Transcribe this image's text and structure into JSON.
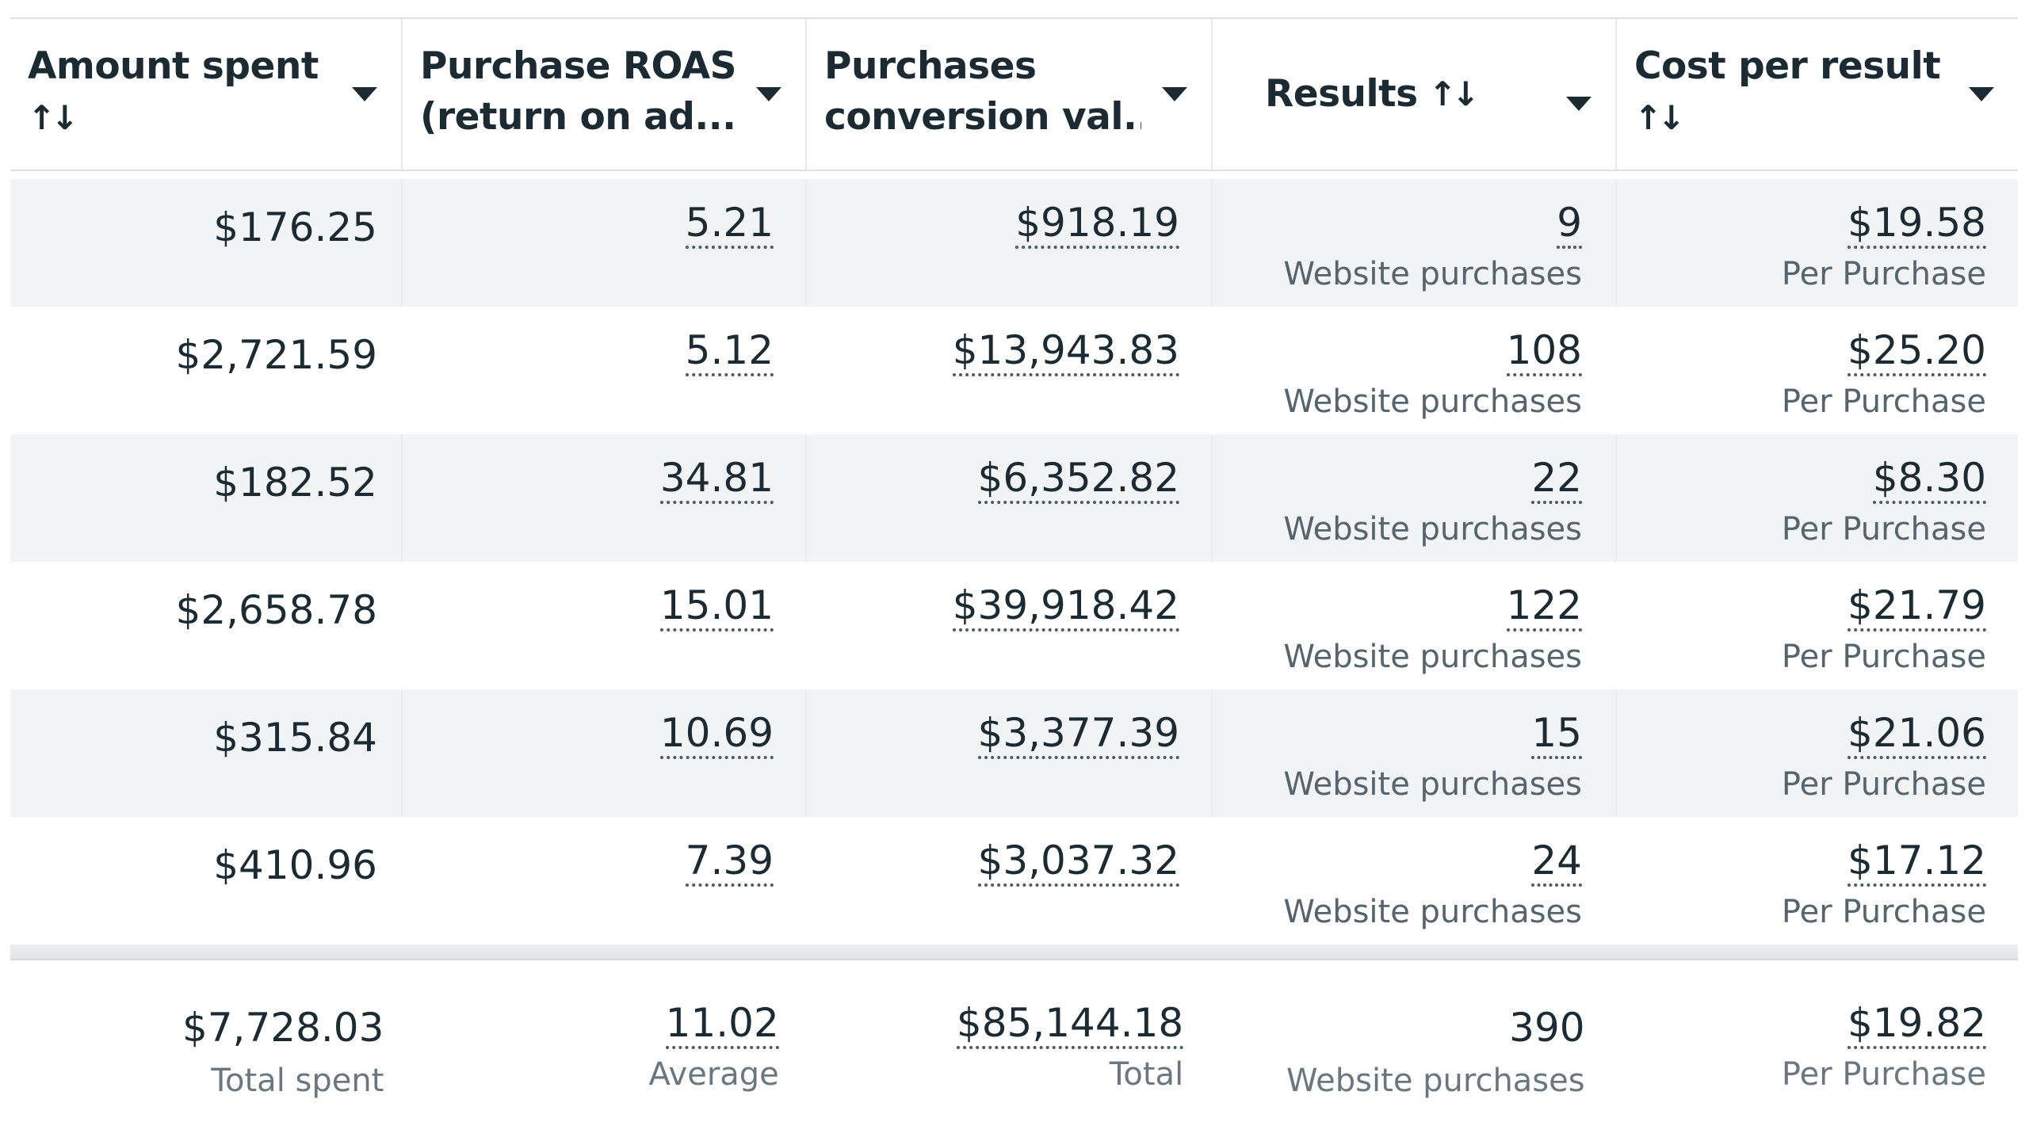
{
  "columns": [
    {
      "label": "Amount spent",
      "sort_icon": "↑↓"
    },
    {
      "label": "Purchase ROAS (return on ad...",
      "line1": "Purchase ROAS",
      "line2": "(return on ad..."
    },
    {
      "label": "Purchases conversion val...",
      "line1": "Purchases",
      "line2": "conversion val..."
    },
    {
      "label": "Results",
      "sort_icon": "↑↓"
    },
    {
      "label": "Cost per result",
      "sort_icon": "↑↓"
    }
  ],
  "rows": [
    {
      "amount": "$176.25",
      "roas": "5.21",
      "conv": "$918.19",
      "results": "9",
      "results_sub": "Website purchases",
      "cpr": "$19.58",
      "cpr_sub": "Per Purchase"
    },
    {
      "amount": "$2,721.59",
      "roas": "5.12",
      "conv": "$13,943.83",
      "results": "108",
      "results_sub": "Website purchases",
      "cpr": "$25.20",
      "cpr_sub": "Per Purchase"
    },
    {
      "amount": "$182.52",
      "roas": "34.81",
      "conv": "$6,352.82",
      "results": "22",
      "results_sub": "Website purchases",
      "cpr": "$8.30",
      "cpr_sub": "Per Purchase"
    },
    {
      "amount": "$2,658.78",
      "roas": "15.01",
      "conv": "$39,918.42",
      "results": "122",
      "results_sub": "Website purchases",
      "cpr": "$21.79",
      "cpr_sub": "Per Purchase"
    },
    {
      "amount": "$315.84",
      "roas": "10.69",
      "conv": "$3,377.39",
      "results": "15",
      "results_sub": "Website purchases",
      "cpr": "$21.06",
      "cpr_sub": "Per Purchase"
    },
    {
      "amount": "$410.96",
      "roas": "7.39",
      "conv": "$3,037.32",
      "results": "24",
      "results_sub": "Website purchases",
      "cpr": "$17.12",
      "cpr_sub": "Per Purchase"
    }
  ],
  "totals": {
    "amount": "$7,728.03",
    "amount_sub": "Total spent",
    "roas": "11.02",
    "roas_sub": "Average",
    "conv": "$85,144.18",
    "conv_sub": "Total",
    "results": "390",
    "results_sub": "Website purchases",
    "cpr": "$19.82",
    "cpr_sub": "Per Purchase"
  }
}
